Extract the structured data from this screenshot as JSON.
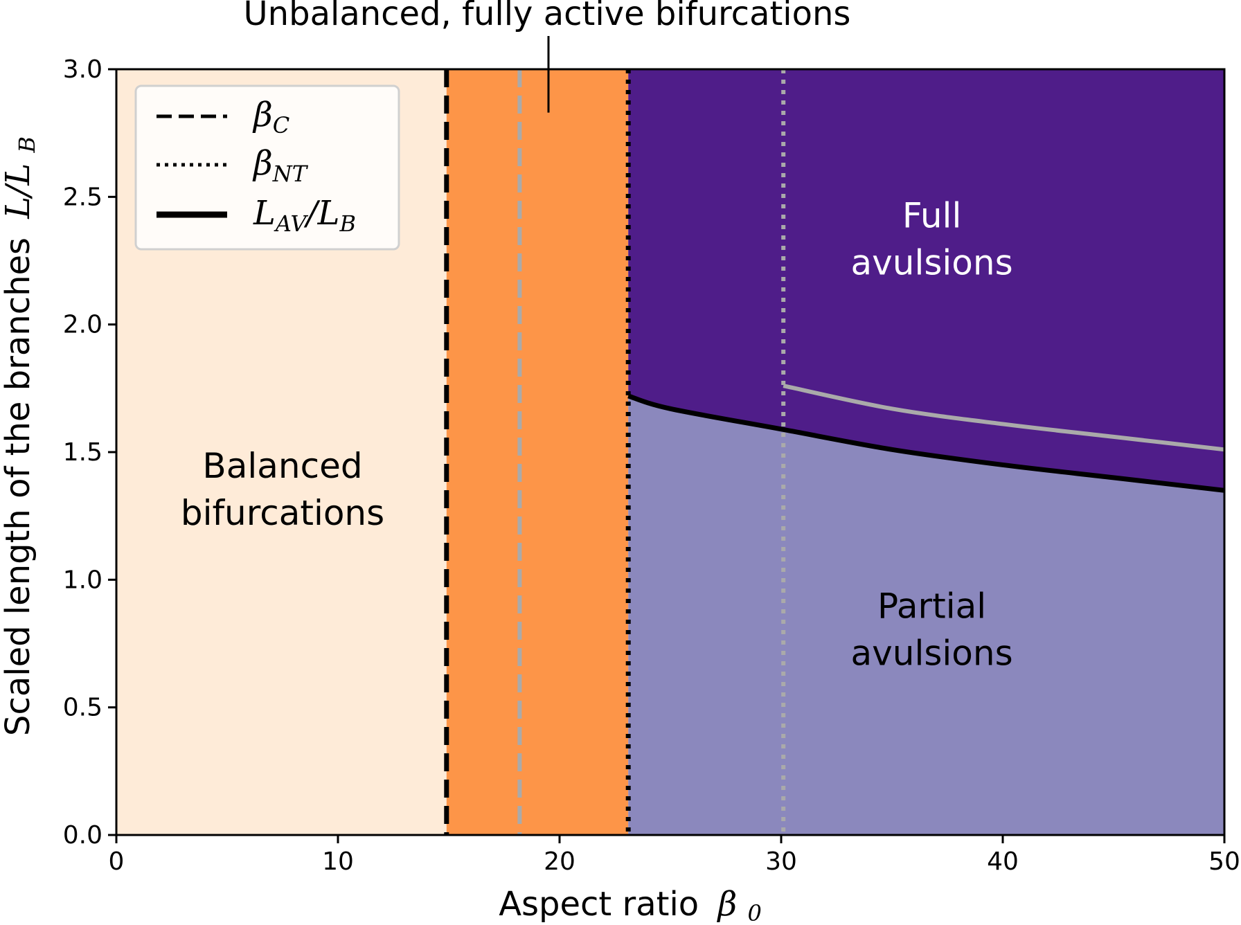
{
  "chart_data": {
    "type": "area",
    "title": "Unbalanced, fully active bifurcations",
    "xlabel": "Aspect ratio",
    "xlabel_symbol": "β",
    "xlabel_subscript": "0",
    "ylabel": "Scaled length of the branches",
    "ylabel_symbol": "L/L",
    "ylabel_subscript": "B",
    "xlim": [
      0,
      50
    ],
    "ylim": [
      0,
      3
    ],
    "xticks": [
      "0",
      "10",
      "20",
      "30",
      "40",
      "50"
    ],
    "yticks": [
      "0.0",
      "0.5",
      "1.0",
      "1.5",
      "2.0",
      "2.5",
      "3.0"
    ],
    "grid": false,
    "legend_position": "top-left",
    "legend": [
      {
        "style": "dashed",
        "symbol": "β",
        "subscript": "C"
      },
      {
        "style": "dotted",
        "symbol": "β",
        "subscript": "NT"
      },
      {
        "style": "solid",
        "symbol": "L",
        "subscript": "AV",
        "tail_symbol": "/L",
        "tail_subscript": "B"
      }
    ],
    "vertical_lines": [
      {
        "x": 14.9,
        "style": "dashed",
        "color": "#000000"
      },
      {
        "x": 18.2,
        "style": "dashed",
        "color": "#aaaaaa"
      },
      {
        "x": 23.1,
        "style": "dotted",
        "color": "#000000"
      },
      {
        "x": 30.1,
        "style": "dotted",
        "color": "#aaaaaa"
      }
    ],
    "curves": [
      {
        "name": "L_AV/L_B",
        "color": "#000000",
        "x": [
          23.1,
          25,
          30,
          35,
          40,
          45,
          50
        ],
        "y": [
          1.72,
          1.67,
          1.59,
          1.51,
          1.45,
          1.4,
          1.35
        ]
      },
      {
        "color": "#aaaaaa",
        "x": [
          30.1,
          35,
          40,
          45,
          50
        ],
        "y": [
          1.76,
          1.67,
          1.61,
          1.56,
          1.51
        ]
      }
    ],
    "regions": [
      {
        "name": "balanced",
        "label_lines": [
          "Balanced",
          "bifurcations"
        ],
        "x_range": [
          0,
          14.9
        ],
        "color": "#feebd8",
        "text_color": "#000000",
        "label_x": 7.5,
        "label_y": 1.4
      },
      {
        "name": "unbalanced",
        "x_range": [
          14.9,
          23.1
        ],
        "color": "#fd9548"
      },
      {
        "name": "full",
        "label_lines": [
          "Full",
          "avulsions"
        ],
        "x_range": [
          23.1,
          50
        ],
        "color": "#4f1d89",
        "text_color": "#ffffff",
        "label_x": 36.8,
        "label_y": 2.38
      },
      {
        "name": "partial",
        "label_lines": [
          "Partial",
          "avulsions"
        ],
        "x_range": [
          23.1,
          50
        ],
        "color": "#8b88bd",
        "text_color": "#000000",
        "label_x": 36.8,
        "label_y": 0.85
      }
    ],
    "annotation": {
      "x": 19.5,
      "y_top": 3.0,
      "y_bottom": 2.83
    }
  }
}
